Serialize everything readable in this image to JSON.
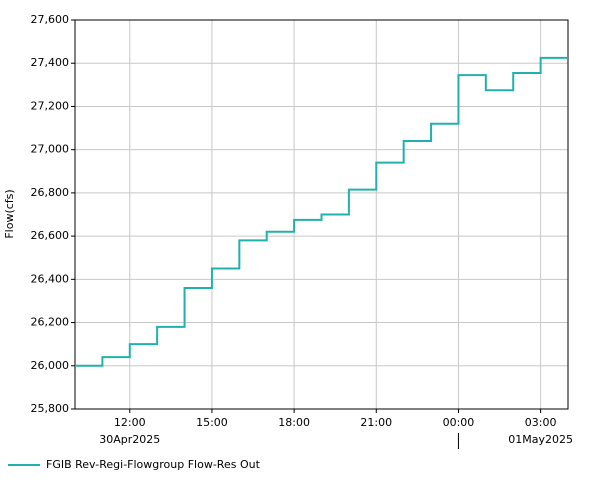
{
  "chart_data": {
    "type": "step",
    "y_label": "Flow(cfs)",
    "x": [
      "2025-04-30T10:00",
      "2025-04-30T11:00",
      "2025-04-30T12:00",
      "2025-04-30T13:00",
      "2025-04-30T14:00",
      "2025-04-30T15:00",
      "2025-04-30T16:00",
      "2025-04-30T17:00",
      "2025-04-30T18:00",
      "2025-04-30T19:00",
      "2025-04-30T20:00",
      "2025-04-30T21:00",
      "2025-04-30T22:00",
      "2025-04-30T23:00",
      "2025-05-01T00:00",
      "2025-05-01T01:00",
      "2025-05-01T02:00",
      "2025-05-01T03:00"
    ],
    "series": [
      {
        "name": "FGIB Rev-Regi-Flowgroup Flow-Res Out",
        "color": "#20b2aa",
        "values": [
          26000,
          26040,
          26100,
          26180,
          26360,
          26450,
          26580,
          26620,
          26675,
          26700,
          26815,
          26940,
          27040,
          27120,
          27345,
          27275,
          27355,
          27425
        ]
      }
    ],
    "xlim": [
      "2025-04-30T10:00",
      "2025-05-01T04:00"
    ],
    "xticks": [
      {
        "value": "2025-04-30T12:00",
        "label": "12:00"
      },
      {
        "value": "2025-04-30T15:00",
        "label": "15:00"
      },
      {
        "value": "2025-04-30T18:00",
        "label": "18:00"
      },
      {
        "value": "2025-04-30T21:00",
        "label": "21:00"
      },
      {
        "value": "2025-05-01T00:00",
        "label": "00:00"
      },
      {
        "value": "2025-05-01T03:00",
        "label": "03:00"
      }
    ],
    "date_labels": [
      {
        "value": "2025-04-30T12:00",
        "label": "30Apr2025"
      },
      {
        "value": "2025-05-01T03:00",
        "label": "01May2025"
      }
    ],
    "ylim": [
      25800,
      27600
    ],
    "yticks": [
      {
        "value": 25800,
        "label": "25,800"
      },
      {
        "value": 26000,
        "label": "26,000"
      },
      {
        "value": 26200,
        "label": "26,200"
      },
      {
        "value": 26400,
        "label": "26,400"
      },
      {
        "value": 26600,
        "label": "26,600"
      },
      {
        "value": 26800,
        "label": "26,800"
      },
      {
        "value": 27000,
        "label": "27,000"
      },
      {
        "value": 27200,
        "label": "27,200"
      },
      {
        "value": 27400,
        "label": "27,400"
      },
      {
        "value": 27600,
        "label": "27,600"
      }
    ],
    "grid": true,
    "legend": "bottom-left"
  }
}
